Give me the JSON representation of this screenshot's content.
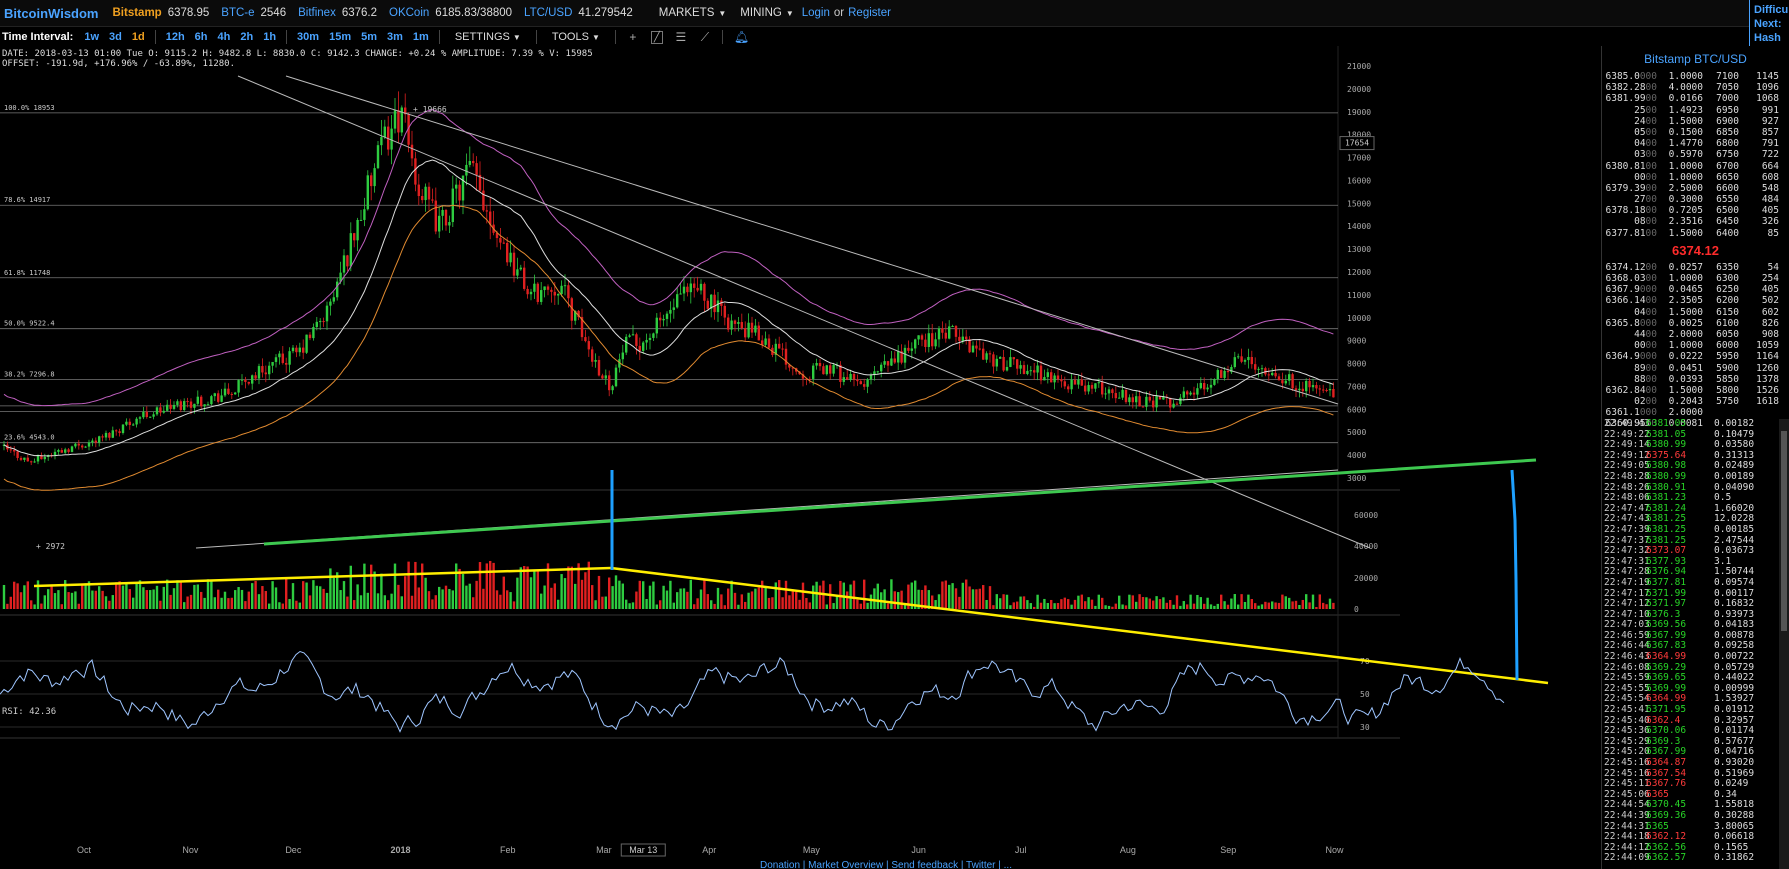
{
  "nav": {
    "logo": "BitcoinWisdom",
    "exchanges": [
      {
        "name": "Bitstamp",
        "price": "6378.95",
        "active": true
      },
      {
        "name": "BTC-e",
        "price": "2546"
      },
      {
        "name": "Bitfinex",
        "price": "6376.2"
      },
      {
        "name": "OKCoin",
        "price": "6185.83/38800"
      },
      {
        "name": "LTC/USD",
        "price": "41.279542"
      }
    ],
    "markets": "MARKETS",
    "mining": "MINING",
    "login": "Login",
    "or": "or",
    "register": "Register",
    "right_panel": [
      "Difficu",
      "Next:",
      "Hash R"
    ]
  },
  "toolbar": {
    "label": "Time Interval:",
    "intervals": [
      "1w",
      "3d",
      "1d",
      "12h",
      "6h",
      "4h",
      "2h",
      "1h",
      "30m",
      "15m",
      "5m",
      "3m",
      "1m"
    ],
    "selected": "1d",
    "settings": "SETTINGS",
    "tools": "TOOLS"
  },
  "info": {
    "line1": "DATE: 2018-03-13 01:00 Tue   O: 9115.2   H: 9482.8   L: 8830.0   C: 9142.3   CHANGE: +0.24 %   AMPLITUDE: 7.39 %   V: 15985",
    "line2": "OFFSET: -191.9d, +176.96% / -63.89%, 11280."
  },
  "chart_data": {
    "type": "candlestick",
    "price_ticks": [
      21000,
      20000,
      19000,
      18000,
      17000,
      16000,
      15000,
      14000,
      13000,
      12000,
      11000,
      10000,
      9000,
      8000,
      7000,
      6000,
      5000,
      4000,
      3000
    ],
    "volume_ticks": [
      "60000",
      "40000",
      "20000",
      "0"
    ],
    "rsi_ticks": [
      "70",
      "50",
      "30"
    ],
    "rsi_label": "RSI: 42.36",
    "months": [
      "Oct",
      "Nov",
      "Dec",
      "2018",
      "Feb",
      "Mar",
      "Apr",
      "May",
      "Jun",
      "Jul",
      "Aug",
      "Sep",
      "Now"
    ],
    "cursor_date": "Mar 13",
    "price_marker": "17654",
    "high_label": "19666",
    "low_label": "2972",
    "fib_levels": [
      {
        "label": "100.0% 18953",
        "value": 18953
      },
      {
        "label": "78.6% 14917",
        "value": 14917
      },
      {
        "label": "61.8% 11748",
        "value": 11748
      },
      {
        "label": "50.0% 9522.4",
        "value": 9522.4
      },
      {
        "label": "38.2% 7296.8",
        "value": 7296.8
      },
      {
        "label": "23.6% 4543.0",
        "value": 4543.0
      }
    ]
  },
  "orderbook": {
    "title": "Bitstamp BTC/USD",
    "asks": [
      [
        "6385.0",
        "000",
        "1.0000",
        "7100",
        "1145"
      ],
      [
        "6382.28",
        "00",
        "4.0000",
        "7050",
        "1096"
      ],
      [
        "6381.99",
        "00",
        "0.0166",
        "7000",
        "1068"
      ],
      [
        "25",
        "00",
        "1.4923",
        "6950",
        "991"
      ],
      [
        "24",
        "00",
        "1.5000",
        "6900",
        "927"
      ],
      [
        "05",
        "00",
        "0.1500",
        "6850",
        "857"
      ],
      [
        "04",
        "00",
        "1.4770",
        "6800",
        "791"
      ],
      [
        "03",
        "00",
        "0.5970",
        "6750",
        "722"
      ],
      [
        "6380.81",
        "00",
        "1.0000",
        "6700",
        "664"
      ],
      [
        "00",
        "00",
        "1.0000",
        "6650",
        "608"
      ],
      [
        "6379.39",
        "00",
        "2.5000",
        "6600",
        "548"
      ],
      [
        "27",
        "00",
        "0.3000",
        "6550",
        "484"
      ],
      [
        "6378.18",
        "00",
        "0.7205",
        "6500",
        "405"
      ],
      [
        "08",
        "00",
        "2.3516",
        "6450",
        "326"
      ],
      [
        "6377.81",
        "00",
        "1.5000",
        "6400",
        "85"
      ]
    ],
    "last": "6374.12",
    "bids": [
      [
        "6374.12",
        "00",
        "0.0257",
        "6350",
        "54"
      ],
      [
        "6368.03",
        "00",
        "1.0000",
        "6300",
        "254"
      ],
      [
        "6367.9",
        "000",
        "0.0465",
        "6250",
        "405"
      ],
      [
        "6366.14",
        "00",
        "2.3505",
        "6200",
        "502"
      ],
      [
        "04",
        "00",
        "1.5000",
        "6150",
        "602"
      ],
      [
        "6365.8",
        "000",
        "0.0025",
        "6100",
        "826"
      ],
      [
        "44",
        "00",
        "2.0000",
        "6050",
        "908"
      ],
      [
        "00",
        "00",
        "1.0000",
        "6000",
        "1059"
      ],
      [
        "6364.9",
        "000",
        "0.0222",
        "5950",
        "1164"
      ],
      [
        "89",
        "00",
        "0.0451",
        "5900",
        "1260"
      ],
      [
        "88",
        "00",
        "0.0393",
        "5850",
        "1378"
      ],
      [
        "6362.84",
        "00",
        "1.5000",
        "5800",
        "1526"
      ],
      [
        "02",
        "00",
        "0.2043",
        "5750",
        "1618"
      ],
      [
        "6361.1",
        "000",
        "2.0000",
        "",
        ""
      ],
      [
        "6360.95",
        "00",
        "0.0081",
        "",
        ""
      ]
    ]
  },
  "trades": [
    [
      "22:49:43",
      "6381.05",
      "g",
      "0.00182"
    ],
    [
      "22:49:22",
      "6381.05",
      "g",
      "0.10479"
    ],
    [
      "22:49:14",
      "6380.99",
      "g",
      "0.03580"
    ],
    [
      "22:49:12",
      "6375.64",
      "r",
      "0.31313"
    ],
    [
      "22:49:05",
      "6380.98",
      "g",
      "0.02489"
    ],
    [
      "22:48:28",
      "6380.99",
      "g",
      "0.00189"
    ],
    [
      "22:48:26",
      "6380.91",
      "g",
      "0.04090"
    ],
    [
      "22:48:06",
      "6381.23",
      "g",
      "0.5"
    ],
    [
      "22:47:47",
      "6381.24",
      "g",
      "1.66020"
    ],
    [
      "22:47:43",
      "6381.25",
      "g",
      "12.0228"
    ],
    [
      "22:47:39",
      "6381.25",
      "g",
      "0.00185"
    ],
    [
      "22:47:37",
      "6381.25",
      "g",
      "2.47544"
    ],
    [
      "22:47:32",
      "6373.07",
      "r",
      "0.03673"
    ],
    [
      "22:47:31",
      "6377.93",
      "g",
      "3.1"
    ],
    [
      "22:47:28",
      "6376.94",
      "g",
      "1.50744"
    ],
    [
      "22:47:19",
      "6377.81",
      "g",
      "0.09574"
    ],
    [
      "22:47:17",
      "6371.99",
      "g",
      "0.00117"
    ],
    [
      "22:47:12",
      "6371.97",
      "g",
      "0.16832"
    ],
    [
      "22:47:10",
      "6376.3",
      "g",
      "0.93973"
    ],
    [
      "22:47:03",
      "6369.56",
      "g",
      "0.04183"
    ],
    [
      "22:46:59",
      "6367.99",
      "g",
      "0.00878"
    ],
    [
      "22:46:44",
      "6367.83",
      "g",
      "0.09258"
    ],
    [
      "22:46:43",
      "6364.99",
      "r",
      "0.00722"
    ],
    [
      "22:46:08",
      "6369.29",
      "g",
      "0.05729"
    ],
    [
      "22:45:59",
      "6369.65",
      "g",
      "0.44022"
    ],
    [
      "22:45:55",
      "6369.99",
      "g",
      "0.00999"
    ],
    [
      "22:45:54",
      "6364.99",
      "r",
      "1.53927"
    ],
    [
      "22:45:41",
      "6371.95",
      "g",
      "0.01912"
    ],
    [
      "22:45:40",
      "6362.4",
      "r",
      "0.32957"
    ],
    [
      "22:45:36",
      "6370.06",
      "g",
      "0.01174"
    ],
    [
      "22:45:29",
      "6369.3",
      "g",
      "0.57677"
    ],
    [
      "22:45:20",
      "6367.99",
      "g",
      "0.04716"
    ],
    [
      "22:45:16",
      "6364.87",
      "r",
      "0.93020"
    ],
    [
      "22:45:16",
      "6367.54",
      "r",
      "0.51969"
    ],
    [
      "22:45:11",
      "6367.76",
      "r",
      "0.0249"
    ],
    [
      "22:45:06",
      "6365",
      "r",
      "0.34"
    ],
    [
      "22:44:54",
      "6370.45",
      "g",
      "1.55818"
    ],
    [
      "22:44:39",
      "6369.36",
      "g",
      "0.30288"
    ],
    [
      "22:44:31",
      "6365",
      "g",
      "3.80065"
    ],
    [
      "22:44:18",
      "6362.12",
      "r",
      "0.06618"
    ],
    [
      "22:44:12",
      "6362.56",
      "g",
      "0.1565"
    ],
    [
      "22:44:09",
      "6362.57",
      "g",
      "0.31862"
    ]
  ],
  "footer": "Donation   |   Market Overview   |   Send feedback   |   Twitter   |   ..."
}
